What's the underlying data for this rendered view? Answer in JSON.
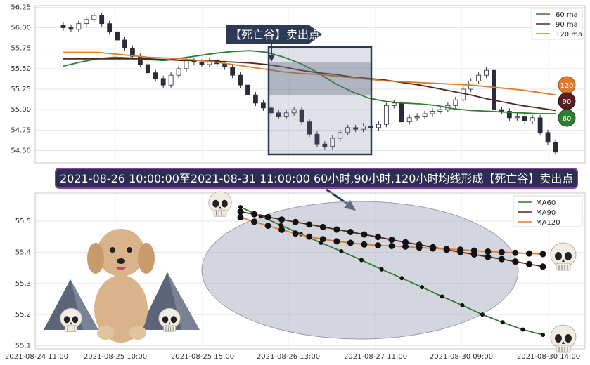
{
  "top_chart": {
    "y_ticks": [
      "56.25",
      "56.00",
      "55.75",
      "55.50",
      "55.25",
      "55.00",
      "54.75",
      "54.50"
    ],
    "y_values": [
      56.25,
      56.0,
      55.75,
      55.5,
      55.25,
      55.0,
      54.75,
      54.5
    ],
    "legend": [
      "60 ma",
      "90 ma",
      "120 ma"
    ],
    "badges": [
      "120",
      "90",
      "60"
    ],
    "signal_label": "【死亡谷】卖出点"
  },
  "banner_text": "2021-08-26 10:00:00至2021-08-31 11:00:00 60小时,90小时,120小时均线形成【死亡谷】卖出点",
  "bottom_chart": {
    "y_ticks": [
      "55.5",
      "55.4",
      "55.3",
      "55.2",
      "55.1"
    ],
    "x_ticks": [
      "2021-08-24 11:00",
      "2021-08-25 10:00",
      "2021-08-25 15:00",
      "2021-08-26 13:00",
      "2021-08-27 11:00",
      "2021-08-30 09:00",
      "2021-08-30 14:00"
    ],
    "legend": [
      "MA60",
      "MA90",
      "MA120"
    ]
  },
  "colors": {
    "ma60": "#2e7d32",
    "ma90": "#4e2a1e",
    "ma120": "#e07b2c",
    "banner_bg": "#2d2d52",
    "banner_border": "#8a3fa8",
    "label_bg": "#2d3a55"
  },
  "chart_data": [
    {
      "type": "candlestick",
      "title": "",
      "ylim": [
        54.35,
        56.27
      ],
      "y_ticks": [
        56.25,
        56.0,
        55.75,
        55.5,
        55.25,
        55.0,
        54.75,
        54.5
      ],
      "grid": true,
      "legend_position": "top-right",
      "series": [
        {
          "name": "60 ma",
          "values": [
            55.53,
            55.58,
            55.62,
            55.64,
            55.63,
            55.61,
            55.6,
            55.63,
            55.66,
            55.69,
            55.71,
            55.72,
            55.7,
            55.64,
            55.56,
            55.45,
            55.32,
            55.22,
            55.14,
            55.1,
            55.08,
            55.07,
            55.05,
            55.01,
            54.99,
            54.98,
            54.97,
            54.96,
            54.95,
            54.95
          ]
        },
        {
          "name": "90 ma",
          "values": [
            55.62,
            55.62,
            55.62,
            55.62,
            55.62,
            55.62,
            55.61,
            55.6,
            55.6,
            55.59,
            55.58,
            55.57,
            55.55,
            55.52,
            55.48,
            55.45,
            55.43,
            55.4,
            55.38,
            55.36,
            55.33,
            55.3,
            55.26,
            55.22,
            55.18,
            55.13,
            55.09,
            55.05,
            55.02,
            54.99
          ]
        },
        {
          "name": "120 ma",
          "values": [
            55.7,
            55.7,
            55.7,
            55.68,
            55.66,
            55.64,
            55.63,
            55.62,
            55.6,
            55.58,
            55.55,
            55.52,
            55.49,
            55.46,
            55.44,
            55.43,
            55.41,
            55.39,
            55.37,
            55.35,
            55.34,
            55.33,
            55.32,
            55.31,
            55.3,
            55.28,
            55.26,
            55.24,
            55.21,
            55.18
          ]
        }
      ],
      "candle_close_path": [
        56.0,
        55.98,
        56.05,
        56.1,
        56.15,
        56.05,
        55.95,
        55.85,
        55.75,
        55.65,
        55.55,
        55.45,
        55.38,
        55.3,
        55.42,
        55.5,
        55.6,
        55.58,
        55.55,
        55.6,
        55.56,
        55.52,
        55.42,
        55.3,
        55.18,
        55.08,
        55.02,
        54.96,
        54.92,
        54.96,
        55.0,
        54.85,
        54.7,
        54.58,
        54.55,
        54.65,
        54.72,
        54.78,
        54.76,
        54.8,
        54.78,
        54.82,
        55.05,
        55.08,
        54.85,
        54.9,
        54.92,
        54.95,
        54.98,
        55.0,
        55.05,
        55.12,
        55.25,
        55.35,
        55.42,
        55.48,
        55.0,
        54.98,
        54.9,
        54.92,
        54.86,
        54.9,
        54.72,
        54.6,
        54.48
      ],
      "annotation": {
        "label": "【死亡谷】卖出点"
      }
    },
    {
      "type": "line",
      "title": "",
      "ylim": [
        55.09,
        55.59
      ],
      "y_ticks": [
        55.5,
        55.4,
        55.3,
        55.2,
        55.1
      ],
      "x_ticks": [
        "2021-08-24 11:00",
        "2021-08-25 10:00",
        "2021-08-25 15:00",
        "2021-08-26 13:00",
        "2021-08-27 11:00",
        "2021-08-30 09:00",
        "2021-08-30 14:00"
      ],
      "grid": true,
      "legend_position": "top-right",
      "series": [
        {
          "name": "MA60",
          "values": [
            55.545,
            55.515,
            55.487,
            55.458,
            55.43,
            55.403,
            55.375,
            55.345,
            55.317,
            55.288,
            55.258,
            55.23,
            55.2,
            55.175,
            55.152,
            55.135
          ]
        },
        {
          "name": "MA90",
          "values": [
            55.53,
            55.522,
            55.513,
            55.505,
            55.497,
            55.489,
            55.481,
            55.473,
            55.465,
            55.457,
            55.449,
            55.44,
            55.432,
            55.424,
            55.416,
            55.408,
            55.4,
            55.393,
            55.385,
            55.378,
            55.37,
            55.362,
            55.354
          ]
        },
        {
          "name": "MA120",
          "values": [
            55.512,
            55.498,
            55.485,
            55.472,
            55.46,
            55.45,
            55.442,
            55.435,
            55.43,
            55.425,
            55.422,
            55.42,
            55.418,
            55.415,
            55.412,
            55.41,
            55.408,
            55.405,
            55.402,
            55.4,
            55.398,
            55.396,
            55.394
          ]
        }
      ]
    }
  ]
}
